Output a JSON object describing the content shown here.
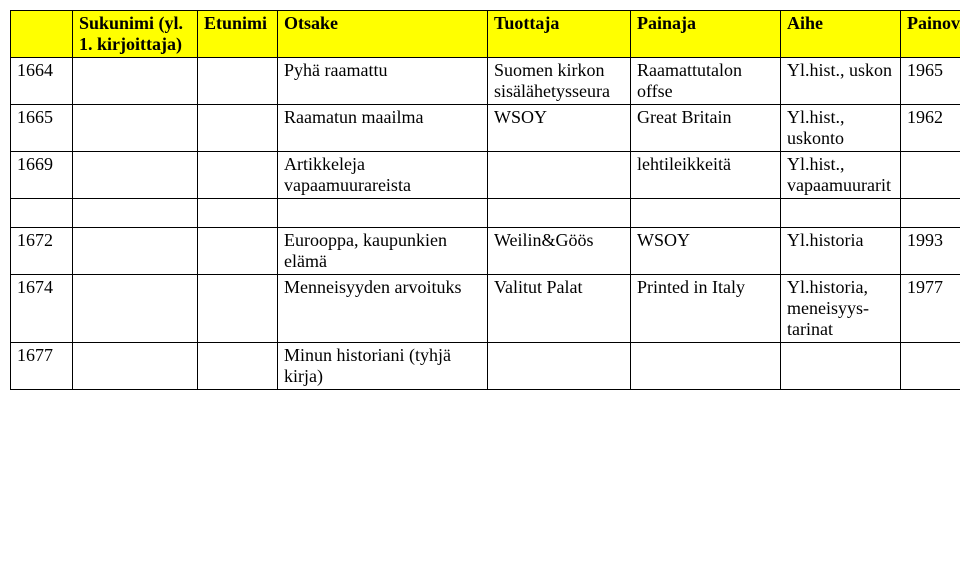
{
  "header": {
    "sukunimi": "Sukunimi (yl. 1. kirjoittaja)",
    "etunimi": "Etunimi",
    "otsake": "Otsake",
    "tuottaja": "Tuottaja",
    "painaja": "Painaja",
    "aihe": "Aihe",
    "painov": "Painov."
  },
  "rows1": [
    {
      "id": "1664",
      "sukunimi": "",
      "etunimi": "",
      "otsake": "Pyhä raamattu",
      "tuottaja": "Suomen kirkon sisälähetysseura",
      "painaja": "Raamattutalon offse",
      "aihe": "Yl.hist., uskon",
      "painov": "1965"
    },
    {
      "id": "1665",
      "sukunimi": "",
      "etunimi": "",
      "otsake": "Raamatun maailma",
      "tuottaja": "WSOY",
      "painaja": "Great Britain",
      "aihe": "Yl.hist., uskonto",
      "painov": "1962"
    },
    {
      "id": "1669",
      "sukunimi": "",
      "etunimi": "",
      "otsake": "Artikkeleja vapaamuurareista",
      "tuottaja": "",
      "painaja": "lehtileikkeitä",
      "aihe": "Yl.hist., vapaamuurarit",
      "painov": ""
    }
  ],
  "rows2": [
    {
      "id": "1672",
      "sukunimi": "",
      "etunimi": "",
      "otsake": "Eurooppa, kaupunkien elämä",
      "tuottaja": "Weilin&Göös",
      "painaja": "WSOY",
      "aihe": "Yl.historia",
      "painov": "1993"
    },
    {
      "id": "1674",
      "sukunimi": "",
      "etunimi": "",
      "otsake": "Menneisyyden arvoituks",
      "tuottaja": "Valitut Palat",
      "painaja": "Printed in Italy",
      "aihe": "Yl.historia, meneisyys-tarinat",
      "painov": "1977"
    },
    {
      "id": "1677",
      "sukunimi": "",
      "etunimi": "",
      "otsake": "Minun historiani (tyhjä kirja)",
      "tuottaja": "",
      "painaja": "",
      "aihe": "",
      "painov": ""
    }
  ],
  "style": {
    "header_bg": "#ffff00",
    "border_color": "#000000",
    "font_family": "Times New Roman",
    "font_size_pt": 13
  }
}
